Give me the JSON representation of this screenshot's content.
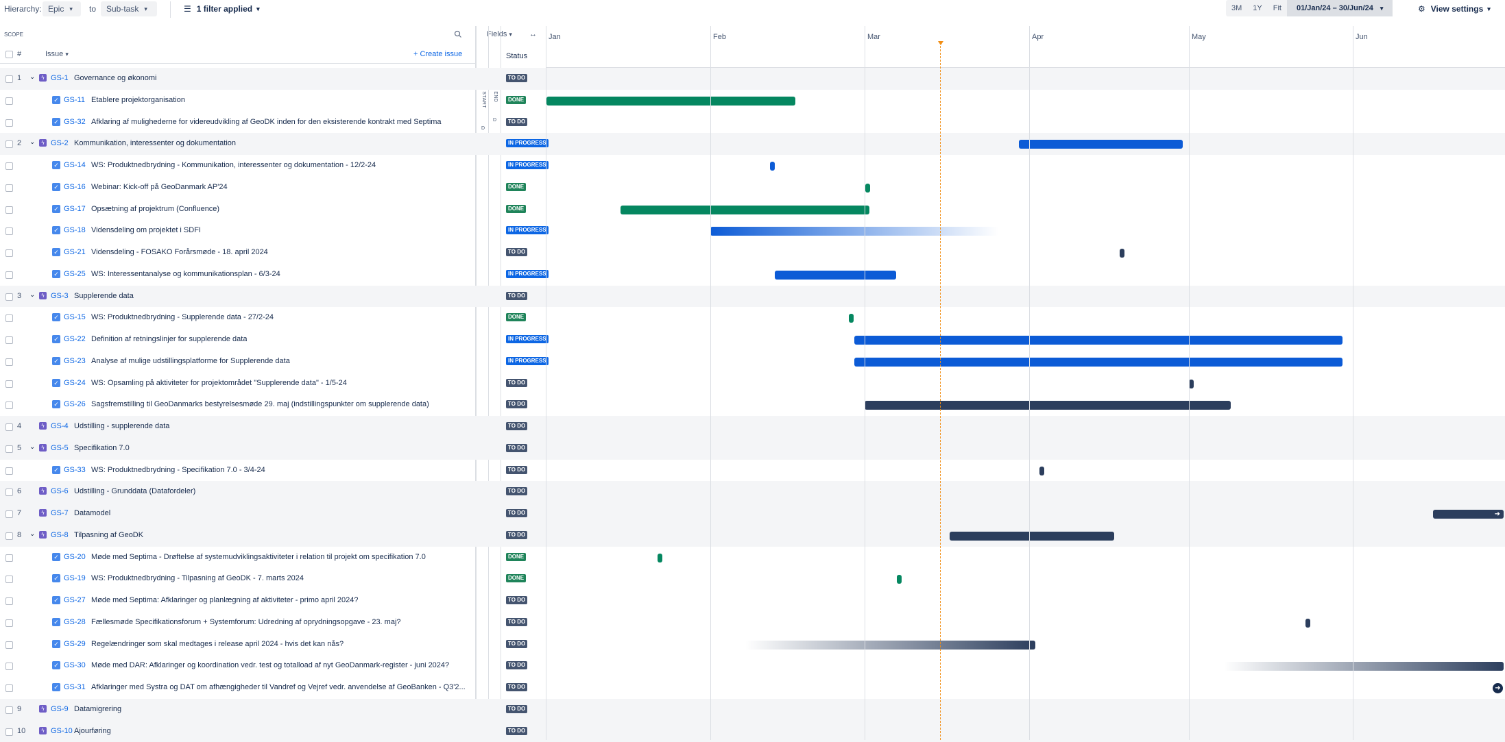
{
  "toolbar": {
    "hierarchy_label": "Hierarchy:",
    "hierarchy_from": "Epic",
    "to_label": "to",
    "hierarchy_to": "Sub-task",
    "filter_label": "1 filter applied",
    "zoom": [
      "3M",
      "1Y",
      "Fit"
    ],
    "date_range": "01/Jan/24 – 30/Jun/24",
    "view_settings": "View settings"
  },
  "scope": {
    "title": "SCOPE",
    "num_header": "#",
    "issue_header": "Issue",
    "create_issue": "Create issue",
    "fields_label": "Fields",
    "status_header": "Status",
    "target_start": "TARGET START",
    "target_end": "TARGET END",
    "target_start_val": "D",
    "target_end_val": "D"
  },
  "months": [
    "Jan",
    "Feb",
    "Mar",
    "Apr",
    "May",
    "Jun"
  ],
  "rows": [
    {
      "type": "epic",
      "num": "1",
      "key": "GS-1",
      "title": "Governance og økonomi",
      "status": "TO DO"
    },
    {
      "type": "task",
      "key": "GS-11",
      "title": "Etablere projektorganisation",
      "status": "DONE"
    },
    {
      "type": "task",
      "key": "GS-32",
      "title": "Afklaring af mulighederne for videreudvikling af GeoDK inden for den eksisterende kontrakt med Septima",
      "status": "TO DO"
    },
    {
      "type": "epic",
      "num": "2",
      "key": "GS-2",
      "title": "Kommunikation, interessenter og dokumentation",
      "status": "IN PROGRESS"
    },
    {
      "type": "task",
      "key": "GS-14",
      "title": "WS: Produktnedbrydning - Kommunikation, interessenter og dokumentation - 12/2-24",
      "status": "IN PROGRESS"
    },
    {
      "type": "task",
      "key": "GS-16",
      "title": "Webinar: Kick-off på GeoDanmark AP'24",
      "status": "DONE"
    },
    {
      "type": "task",
      "key": "GS-17",
      "title": "Opsætning af projektrum (Confluence)",
      "status": "DONE"
    },
    {
      "type": "task",
      "key": "GS-18",
      "title": "Vidensdeling om projektet i SDFI",
      "status": "IN PROGRESS"
    },
    {
      "type": "task",
      "key": "GS-21",
      "title": "Vidensdeling - FOSAKO Forårsmøde - 18. april 2024",
      "status": "TO DO"
    },
    {
      "type": "task",
      "key": "GS-25",
      "title": "WS: Interessentanalyse og kommunikationsplan - 6/3-24",
      "status": "IN PROGRESS"
    },
    {
      "type": "epic",
      "num": "3",
      "key": "GS-3",
      "title": "Supplerende data",
      "status": "TO DO"
    },
    {
      "type": "task",
      "key": "GS-15",
      "title": "WS: Produktnedbrydning - Supplerende data - 27/2-24",
      "status": "DONE"
    },
    {
      "type": "task",
      "key": "GS-22",
      "title": "Definition af retningslinjer for supplerende data",
      "status": "IN PROGRESS"
    },
    {
      "type": "task",
      "key": "GS-23",
      "title": "Analyse af mulige udstillingsplatforme for Supplerende data",
      "status": "IN PROGRESS"
    },
    {
      "type": "task",
      "key": "GS-24",
      "title": "WS: Opsamling på aktiviteter for projektområdet \"Supplerende data\" - 1/5-24",
      "status": "TO DO"
    },
    {
      "type": "task",
      "key": "GS-26",
      "title": "Sagsfremstilling til GeoDanmarks bestyrelsesmøde 29. maj (indstillingspunkter om supplerende data)",
      "status": "TO DO"
    },
    {
      "type": "epic",
      "num": "4",
      "key": "GS-4",
      "title": "Udstilling - supplerende data",
      "status": "TO DO",
      "nochild": true
    },
    {
      "type": "epic",
      "num": "5",
      "key": "GS-5",
      "title": "Specifikation 7.0",
      "status": "TO DO"
    },
    {
      "type": "task",
      "key": "GS-33",
      "title": "WS: Produktnedbrydning - Specifikation 7.0 - 3/4-24",
      "status": "TO DO"
    },
    {
      "type": "epic",
      "num": "6",
      "key": "GS-6",
      "title": "Udstilling - Grunddata (Datafordeler)",
      "status": "TO DO",
      "nochild": true
    },
    {
      "type": "epic",
      "num": "7",
      "key": "GS-7",
      "title": "Datamodel",
      "status": "TO DO",
      "nochild": true
    },
    {
      "type": "epic",
      "num": "8",
      "key": "GS-8",
      "title": "Tilpasning af GeoDK",
      "status": "TO DO"
    },
    {
      "type": "task",
      "key": "GS-20",
      "title": "Møde med Septima - Drøftelse af systemudviklingsaktiviteter i relation til projekt om specifikation 7.0",
      "status": "DONE"
    },
    {
      "type": "task",
      "key": "GS-19",
      "title": "WS: Produktnedbrydning - Tilpasning af GeoDK - 7. marts 2024",
      "status": "DONE"
    },
    {
      "type": "task",
      "key": "GS-27",
      "title": "Møde med Septima: Afklaringer og planlægning af aktiviteter - primo april 2024?",
      "status": "TO DO"
    },
    {
      "type": "task",
      "key": "GS-28",
      "title": "Fællesmøde Specifikationsforum + Systemforum: Udredning af oprydningsopgave - 23. maj?",
      "status": "TO DO"
    },
    {
      "type": "task",
      "key": "GS-29",
      "title": "Regelændringer som skal medtages i release april 2024 - hvis det kan nås?",
      "status": "TO DO"
    },
    {
      "type": "task",
      "key": "GS-30",
      "title": "Møde med DAR: Afklaringer og koordination vedr. test og totalload af nyt GeoDanmark-register - juni 2024?",
      "status": "TO DO"
    },
    {
      "type": "task",
      "key": "GS-31",
      "title": "Afklaringer med Systra og DAT om afhængigheder til Vandref og Vejref vedr. anvendelse af GeoBanken - Q3'2...",
      "status": "TO DO"
    },
    {
      "type": "epic",
      "num": "9",
      "key": "GS-9",
      "title": "Datamigrering",
      "status": "TO DO",
      "nochild": true
    },
    {
      "type": "epic",
      "num": "10",
      "key": "GS-10",
      "title": "Ajourføring",
      "status": "TO DO",
      "nochild": true
    }
  ],
  "colors": {
    "todo": "#44546f",
    "done": "#1f845a",
    "in_progress": "#0c66e4",
    "today": "#f18d13"
  }
}
